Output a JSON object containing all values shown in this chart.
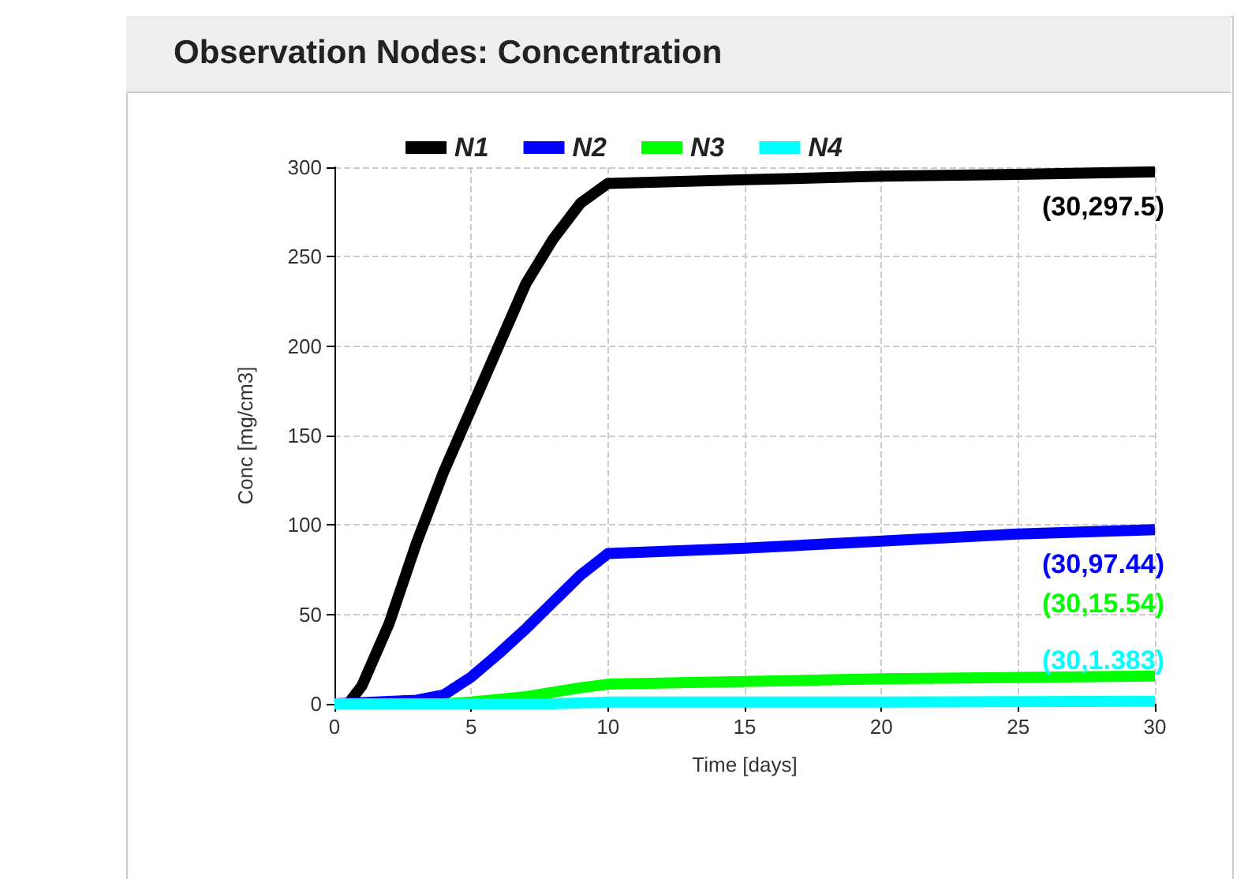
{
  "chart_data": {
    "type": "line",
    "title": "Observation Nodes: Concentration",
    "xlabel": "Time [days]",
    "ylabel": "Conc [mg/cm3]",
    "xlim": [
      0,
      30
    ],
    "xticks": [
      0,
      5,
      10,
      15,
      20,
      25,
      30
    ],
    "ylim": [
      0,
      300
    ],
    "yticks": [
      0,
      50,
      100,
      150,
      200,
      250,
      300
    ],
    "grid": true,
    "legend": "top",
    "marker": "none",
    "line_style": "solid",
    "series": [
      {
        "name": "N1",
        "color": "#000000",
        "x": [
          0.5,
          1,
          2,
          3,
          4,
          5,
          6,
          7,
          8,
          9,
          10,
          15,
          20,
          25,
          30
        ],
        "values": [
          0,
          10,
          45,
          90,
          130,
          165,
          200,
          235,
          260,
          280,
          291,
          293,
          295,
          296,
          297.5
        ]
      },
      {
        "name": "N2",
        "color": "#0000ff",
        "x": [
          0,
          3,
          4,
          5,
          6,
          7,
          8,
          9,
          10,
          15,
          20,
          25,
          30
        ],
        "values": [
          0,
          2,
          5,
          15,
          28,
          42,
          57,
          72,
          84,
          87,
          91,
          95,
          97.44
        ]
      },
      {
        "name": "N3",
        "color": "#00ff00",
        "x": [
          0,
          4,
          5,
          7,
          9,
          10,
          20,
          30
        ],
        "values": [
          0,
          0,
          1,
          4,
          9,
          11,
          14,
          15.54
        ]
      },
      {
        "name": "N4",
        "color": "#00ffff",
        "x": [
          0,
          6,
          8,
          10,
          20,
          30
        ],
        "values": [
          0,
          0,
          0,
          1,
          1,
          1.383
        ]
      }
    ],
    "annotations": [
      "(30,297.5)",
      "(30,97.44)",
      "(30,15.54)",
      "(30,1.383)"
    ]
  }
}
